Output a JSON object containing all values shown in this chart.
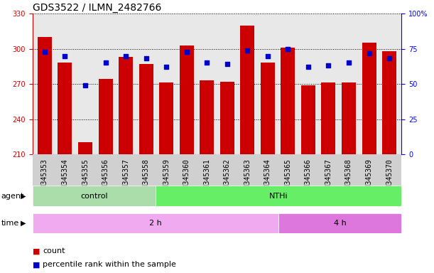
{
  "title": "GDS3522 / ILMN_2482766",
  "samples": [
    "GSM345353",
    "GSM345354",
    "GSM345355",
    "GSM345356",
    "GSM345357",
    "GSM345358",
    "GSM345359",
    "GSM345360",
    "GSM345361",
    "GSM345362",
    "GSM345363",
    "GSM345364",
    "GSM345365",
    "GSM345366",
    "GSM345367",
    "GSM345368",
    "GSM345369",
    "GSM345370"
  ],
  "counts": [
    310,
    288,
    220,
    274,
    293,
    287,
    271,
    303,
    273,
    272,
    320,
    288,
    301,
    269,
    271,
    271,
    305,
    298
  ],
  "percentile_ranks": [
    73,
    70,
    49,
    65,
    70,
    68,
    62,
    73,
    65,
    64,
    74,
    70,
    75,
    62,
    63,
    65,
    72,
    68
  ],
  "ylim_left": [
    210,
    330
  ],
  "ylim_right": [
    0,
    100
  ],
  "yticks_left": [
    210,
    240,
    270,
    300,
    330
  ],
  "yticks_right": [
    0,
    25,
    50,
    75,
    100
  ],
  "ytick_labels_right": [
    "0",
    "25",
    "50",
    "75",
    "100%"
  ],
  "bar_color": "#cc0000",
  "dot_color": "#0000cc",
  "plot_bg_color": "#e8e8e8",
  "xtick_bg_color": "#d0d0d0",
  "agent_control_color": "#aaddaa",
  "agent_nthi_color": "#66ee66",
  "time_2h_color": "#f0aaf0",
  "time_4h_color": "#dd77dd",
  "agent_groups": [
    {
      "label": "control",
      "start": 0,
      "end": 6
    },
    {
      "label": "NTHi",
      "start": 6,
      "end": 18
    }
  ],
  "time_groups": [
    {
      "label": "2 h",
      "start": 0,
      "end": 12
    },
    {
      "label": "4 h",
      "start": 12,
      "end": 18
    }
  ],
  "legend_count_label": "count",
  "legend_percentile_label": "percentile rank within the sample",
  "agent_label": "agent",
  "time_label": "time",
  "title_fontsize": 10,
  "tick_fontsize": 7,
  "label_fontsize": 8,
  "annot_fontsize": 8,
  "bar_width": 0.7
}
